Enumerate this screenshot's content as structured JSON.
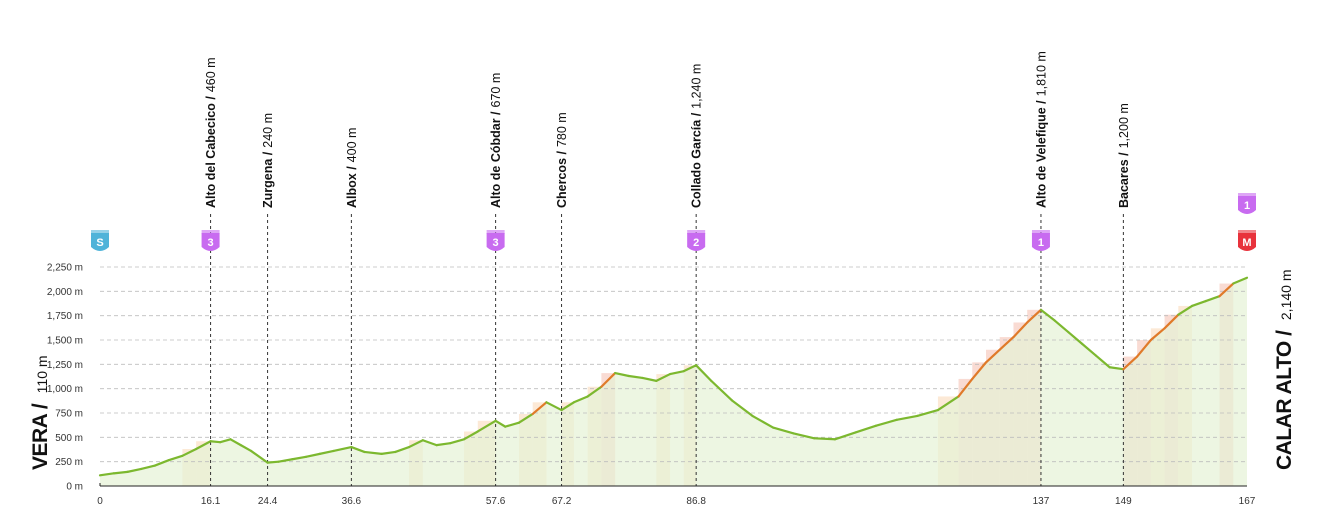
{
  "chart_data": {
    "type": "area",
    "title": "",
    "xlabel": "",
    "ylabel": "",
    "xlim": [
      0,
      167
    ],
    "ylim": [
      0,
      2250
    ],
    "x_ticks": [
      0,
      16.1,
      24.4,
      36.6,
      57.6,
      67.2,
      86.8,
      137,
      149,
      167
    ],
    "y_ticks": [
      0,
      250,
      500,
      750,
      1000,
      1250,
      1500,
      1750,
      2000,
      2250
    ],
    "y_tick_labels": [
      "0 m",
      "250 m",
      "500 m",
      "750 m",
      "1,000 m",
      "1,250 m",
      "1,500 m",
      "1,750 m",
      "2,000 m",
      "2,250 m"
    ],
    "grid": "horizontal-dashed",
    "start": {
      "name": "VERA /",
      "altitude": "110 m"
    },
    "finish": {
      "name": "CALAR ALTO /",
      "altitude": "2,140 m"
    },
    "waypoints": [
      {
        "km": 16.1,
        "name": "Alto del Cabecico /",
        "altitude": "460 m",
        "badge": "3"
      },
      {
        "km": 24.4,
        "name": "Zurgena /",
        "altitude": "240 m",
        "badge": ""
      },
      {
        "km": 36.6,
        "name": "Albox /",
        "altitude": "400 m",
        "badge": ""
      },
      {
        "km": 57.6,
        "name": "Alto de Cóbdar /",
        "altitude": "670 m",
        "badge": "3"
      },
      {
        "km": 67.2,
        "name": "Chercos /",
        "altitude": "780 m",
        "badge": ""
      },
      {
        "km": 86.8,
        "name": "Collado García /",
        "altitude": "1,240 m",
        "badge": "2"
      },
      {
        "km": 137,
        "name": "Alto de Velefique /",
        "altitude": "1,810 m",
        "badge": "1"
      },
      {
        "km": 149,
        "name": "Bacares /",
        "altitude": "1,200 m",
        "badge": ""
      }
    ],
    "start_badge": {
      "km": 0,
      "label": "S",
      "color": "#4fb3d9"
    },
    "finish_badges": [
      {
        "km": 167,
        "label": "1",
        "color": "#c86bf0"
      },
      {
        "km": 167,
        "label": "M",
        "color": "#e8323c"
      }
    ],
    "badge_color": "#c86bf0",
    "line_color": "#7cb82f",
    "steep_color": "#e07a2a",
    "very_steep_color": "#c0242a",
    "fill_color": "#e6f2d6",
    "series": [
      {
        "x": [
          0,
          2,
          4,
          6,
          8,
          10,
          12,
          14,
          16.1,
          17.5,
          19,
          20.5,
          22,
          24.4,
          26,
          28,
          30,
          32,
          34,
          36.6,
          38.5,
          41,
          43,
          45,
          47,
          49,
          51,
          53,
          55,
          57.6,
          59,
          61,
          63,
          65,
          67.2,
          69,
          71,
          73,
          75,
          77,
          79,
          81,
          83,
          85,
          86.8,
          89,
          92,
          95,
          98,
          101,
          104,
          107,
          110,
          113,
          116,
          119,
          122,
          125,
          127,
          129,
          131,
          133,
          135,
          137,
          139,
          141,
          143,
          145,
          147,
          149,
          151,
          153,
          155,
          157,
          159,
          161,
          163,
          165,
          167
        ],
        "y": [
          110,
          130,
          145,
          175,
          210,
          265,
          310,
          380,
          460,
          450,
          480,
          420,
          360,
          240,
          250,
          275,
          300,
          330,
          360,
          400,
          350,
          330,
          350,
          400,
          470,
          420,
          440,
          480,
          560,
          670,
          610,
          650,
          740,
          860,
          780,
          860,
          920,
          1020,
          1160,
          1130,
          1110,
          1080,
          1150,
          1180,
          1240,
          1080,
          880,
          720,
          600,
          540,
          490,
          480,
          550,
          620,
          680,
          720,
          780,
          920,
          1100,
          1270,
          1400,
          1530,
          1680,
          1810,
          1700,
          1580,
          1460,
          1340,
          1220,
          1200,
          1330,
          1500,
          1620,
          1760,
          1850,
          1900,
          1950,
          2080,
          2140
        ]
      }
    ]
  }
}
